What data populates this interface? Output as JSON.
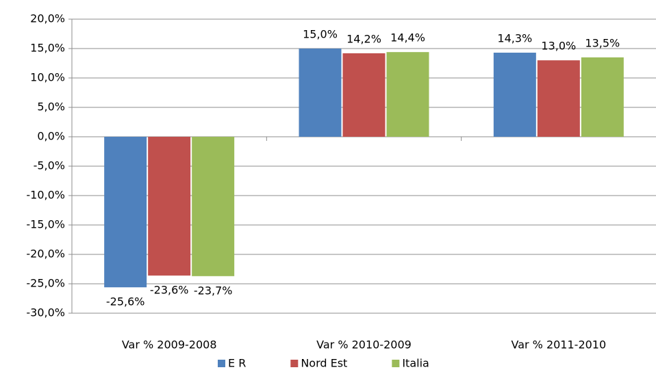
{
  "chart_data": {
    "type": "bar",
    "categories": [
      "Var % 2009-2008",
      "Var % 2010-2009",
      "Var % 2011-2010"
    ],
    "series": [
      {
        "name": "E R",
        "color": "#4f81bd",
        "values": [
          -25.6,
          15.0,
          14.3
        ],
        "value_labels": [
          "-25,6%",
          "15,0%",
          "14,3%"
        ]
      },
      {
        "name": "Nord Est",
        "color": "#c0504d",
        "values": [
          -23.6,
          14.2,
          13.0
        ],
        "value_labels": [
          "-23,6%",
          "14,2%",
          "13,0%"
        ]
      },
      {
        "name": "Italia",
        "color": "#9bbb59",
        "values": [
          -23.7,
          14.4,
          13.5
        ],
        "value_labels": [
          "-23,7%",
          "14,4%",
          "13,5%"
        ]
      }
    ],
    "ylim": [
      -30,
      20
    ],
    "yticks": [
      {
        "value": -30,
        "label": "-30,0%"
      },
      {
        "value": -25,
        "label": "-25,0%"
      },
      {
        "value": -20,
        "label": "-20,0%"
      },
      {
        "value": -15,
        "label": "-15,0%"
      },
      {
        "value": -10,
        "label": "-10,0%"
      },
      {
        "value": -5,
        "label": "-5,0%"
      },
      {
        "value": 0,
        "label": "0,0%"
      },
      {
        "value": 5,
        "label": "5,0%"
      },
      {
        "value": 10,
        "label": "10,0%"
      },
      {
        "value": 15,
        "label": "15,0%"
      },
      {
        "value": 20,
        "label": "20,0%"
      }
    ],
    "grid": true,
    "legend": "bottom"
  }
}
